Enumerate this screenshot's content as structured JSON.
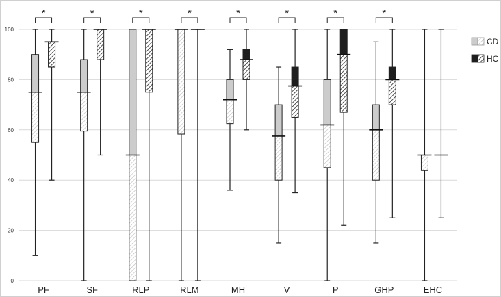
{
  "chart_data": {
    "type": "boxplot",
    "title": "",
    "xlabel": "",
    "ylabel": "",
    "ylim": [
      0,
      100
    ],
    "yticks": [
      0,
      20,
      40,
      60,
      80,
      100
    ],
    "grid": true,
    "legend_position": "right",
    "categories": [
      "PF",
      "SF",
      "RLP",
      "RLM",
      "MH",
      "V",
      "P",
      "GHP",
      "EHC"
    ],
    "significance": [
      "*",
      "*",
      "*",
      "*",
      "*",
      "*",
      "*",
      "*",
      ""
    ],
    "series": [
      {
        "name": "CD",
        "color": "#cccccc",
        "boxes": [
          {
            "min": 10,
            "q1": 55,
            "median": 75,
            "q3": 90,
            "max": 100
          },
          {
            "min": 0,
            "q1": 59.5,
            "median": 75,
            "q3": 88,
            "max": 100
          },
          {
            "min": 0,
            "q1": 0,
            "median": 50,
            "q3": 100,
            "max": 100
          },
          {
            "min": 0,
            "q1": 58.3,
            "median": 100,
            "q3": 100,
            "max": 100
          },
          {
            "min": 36,
            "q1": 62.5,
            "median": 72,
            "q3": 80,
            "max": 92
          },
          {
            "min": 15,
            "q1": 40,
            "median": 57.5,
            "q3": 70,
            "max": 85
          },
          {
            "min": 0,
            "q1": 45,
            "median": 62,
            "q3": 80,
            "max": 100
          },
          {
            "min": 15,
            "q1": 40,
            "median": 60,
            "q3": 70,
            "max": 95
          },
          {
            "min": 0,
            "q1": 43.8,
            "median": 50,
            "q3": 50,
            "max": 100
          }
        ]
      },
      {
        "name": "HC",
        "color": "#222222",
        "boxes": [
          {
            "min": 40,
            "q1": 85,
            "median": 95,
            "q3": 95,
            "max": 100
          },
          {
            "min": 50,
            "q1": 88,
            "median": 100,
            "q3": 100,
            "max": 100
          },
          {
            "min": 0,
            "q1": 75,
            "median": 100,
            "q3": 100,
            "max": 100
          },
          {
            "min": 0,
            "q1": 100,
            "median": 100,
            "q3": 100,
            "max": 100
          },
          {
            "min": 60,
            "q1": 80,
            "median": 88,
            "q3": 92,
            "max": 100
          },
          {
            "min": 35,
            "q1": 65,
            "median": 77.5,
            "q3": 85,
            "max": 100
          },
          {
            "min": 22,
            "q1": 67,
            "median": 90,
            "q3": 100,
            "max": 100
          },
          {
            "min": 25,
            "q1": 70,
            "median": 80,
            "q3": 85,
            "max": 100
          },
          {
            "min": 25,
            "q1": 50,
            "median": 50,
            "q3": 50,
            "max": 100
          }
        ]
      }
    ]
  }
}
